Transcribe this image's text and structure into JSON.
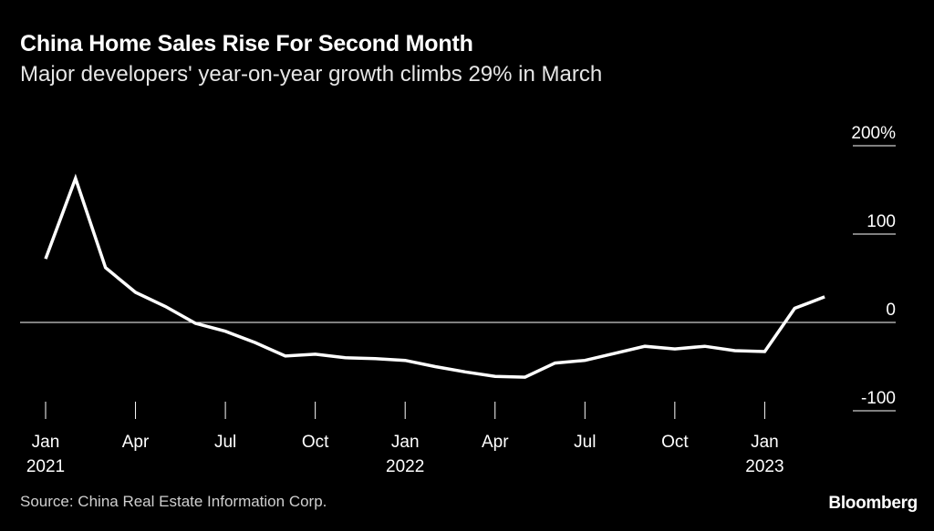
{
  "header": {
    "title": "China Home Sales Rise For Second Month",
    "subtitle": "Major developers' year-on-year growth climbs 29% in March"
  },
  "footer": {
    "source": "Source: China Real Estate Information Corp.",
    "brand": "Bloomberg"
  },
  "colors": {
    "background": "#000000",
    "line": "#ffffff",
    "text": "#ffffff",
    "muted": "#cfcfcf"
  },
  "chart_data": {
    "type": "line",
    "title": "China Home Sales Rise For Second Month",
    "subtitle": "Major developers' year-on-year growth climbs 29% in March",
    "xlabel": "",
    "ylabel": "",
    "ylim": [
      -100,
      200
    ],
    "y_ticks": [
      {
        "value": 200,
        "label": "200%"
      },
      {
        "value": 100,
        "label": "100"
      },
      {
        "value": 0,
        "label": "0"
      },
      {
        "value": -100,
        "label": "-100"
      }
    ],
    "x_ticks": [
      {
        "index": 0,
        "label": "Jan",
        "year": "2021"
      },
      {
        "index": 3,
        "label": "Apr",
        "year": ""
      },
      {
        "index": 6,
        "label": "Jul",
        "year": ""
      },
      {
        "index": 9,
        "label": "Oct",
        "year": ""
      },
      {
        "index": 12,
        "label": "Jan",
        "year": "2022"
      },
      {
        "index": 15,
        "label": "Apr",
        "year": ""
      },
      {
        "index": 18,
        "label": "Jul",
        "year": ""
      },
      {
        "index": 21,
        "label": "Oct",
        "year": ""
      },
      {
        "index": 24,
        "label": "Jan",
        "year": "2023"
      }
    ],
    "series": [
      {
        "name": "Year-on-year growth",
        "x": [
          "2021-01",
          "2021-02",
          "2021-03",
          "2021-04",
          "2021-05",
          "2021-06",
          "2021-07",
          "2021-08",
          "2021-09",
          "2021-10",
          "2021-11",
          "2021-12",
          "2022-01",
          "2022-02",
          "2022-03",
          "2022-04",
          "2022-05",
          "2022-06",
          "2022-07",
          "2022-08",
          "2022-09",
          "2022-10",
          "2022-11",
          "2022-12",
          "2023-01",
          "2023-02",
          "2023-03"
        ],
        "values": [
          72,
          163,
          62,
          34,
          18,
          -1,
          -10,
          -23,
          -38,
          -36,
          -40,
          -41,
          -43,
          -50,
          -56,
          -61,
          -62,
          -46,
          -43,
          -35,
          -27,
          -30,
          -27,
          -32,
          -33,
          16,
          29
        ]
      }
    ]
  }
}
